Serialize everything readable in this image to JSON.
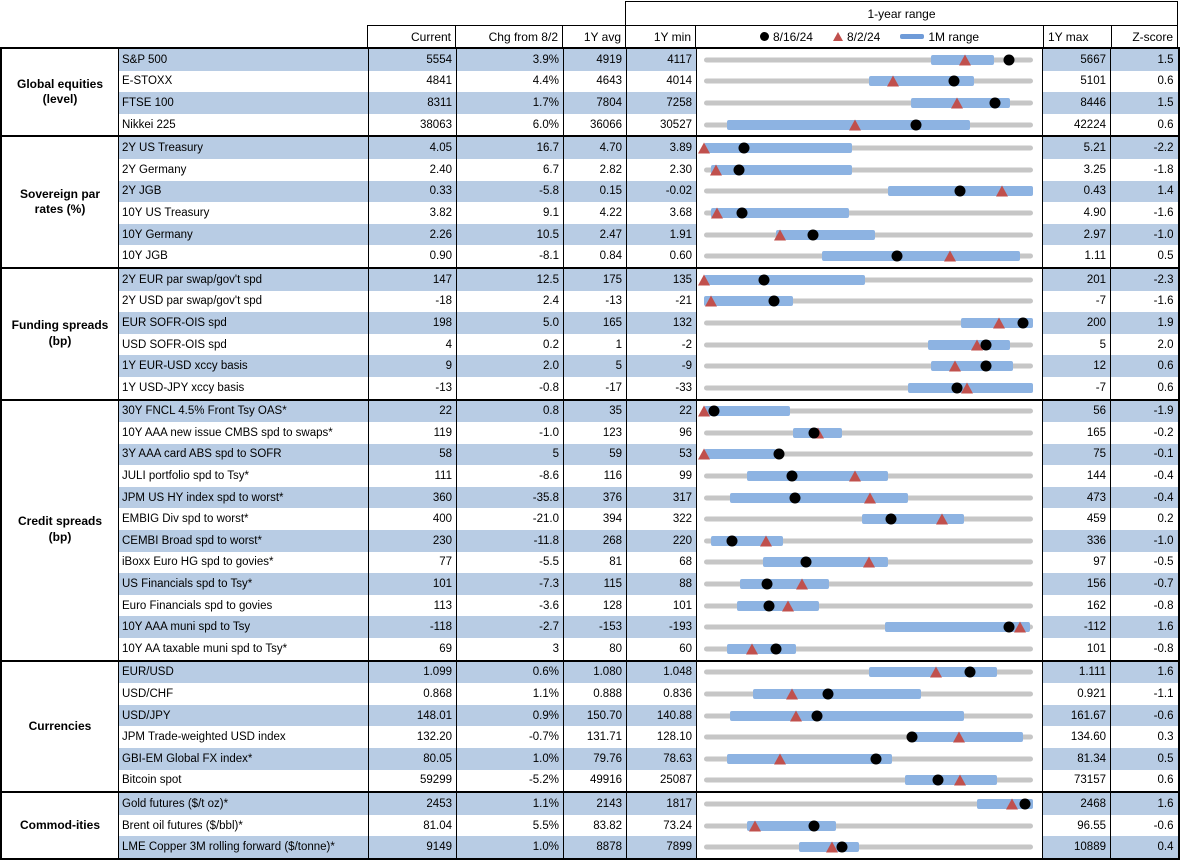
{
  "header": {
    "range_title": "1-year range",
    "col_current": "Current",
    "col_chg": "Chg from 8/2",
    "col_avg": "1Y avg",
    "col_min": "1Y min",
    "col_max": "1Y max",
    "col_z": "Z-score"
  },
  "legend": {
    "dot_label": "8/16/24",
    "tri_label": "8/2/24",
    "bar_label": "1M range"
  },
  "colors": {
    "band_blue": "#b8cce4",
    "range_bar_blue": "#8db3e2",
    "track_gray": "#c6c6c6",
    "marker_red": "#c0504d",
    "marker_black": "#000000",
    "border_black": "#000000"
  },
  "chart_data": {
    "type": "table",
    "title": "1-year range",
    "columns": [
      "Current",
      "Chg from 8/2",
      "1Y avg",
      "1Y min",
      "1-year range",
      "1Y max",
      "Z-score"
    ],
    "marker_legend": [
      "8/16/24 (black dot)",
      "8/2/24 (red triangle)",
      "1M range (blue bar)"
    ],
    "sections": [
      {
        "label": "Global equities\n(level)",
        "rows": [
          {
            "name": "S&P 500",
            "current": "5554",
            "chg": "3.9%",
            "avg": "4919",
            "min": "4117",
            "max": "5667",
            "z": "1.5",
            "bar": [
              0.69,
              0.88
            ],
            "dot": 0.927,
            "tri": 0.793
          },
          {
            "name": "E-STOXX",
            "current": "4841",
            "chg": "4.4%",
            "avg": "4643",
            "min": "4014",
            "max": "5101",
            "z": "0.6",
            "bar": [
              0.5,
              0.82
            ],
            "dot": 0.761,
            "tri": 0.573
          },
          {
            "name": "FTSE 100",
            "current": "8311",
            "chg": "1.7%",
            "avg": "7804",
            "min": "7258",
            "max": "8446",
            "z": "1.5",
            "bar": [
              0.63,
              0.93
            ],
            "dot": 0.886,
            "tri": 0.769
          },
          {
            "name": "Nikkei 225",
            "current": "38063",
            "chg": "6.0%",
            "avg": "36066",
            "min": "30527",
            "max": "42224",
            "z": "0.6",
            "bar": [
              0.07,
              0.81
            ],
            "dot": 0.644,
            "tri": 0.46
          }
        ]
      },
      {
        "label": "Sovereign par\nrates (%)",
        "rows": [
          {
            "name": "2Y US Treasury",
            "current": "4.05",
            "chg": "16.7",
            "avg": "4.70",
            "min": "3.89",
            "max": "5.21",
            "z": "-2.2",
            "bar": [
              0.0,
              0.45
            ],
            "dot": 0.121,
            "tri": 0.0
          },
          {
            "name": "2Y Germany",
            "current": "2.40",
            "chg": "6.7",
            "avg": "2.82",
            "min": "2.30",
            "max": "3.25",
            "z": "-1.8",
            "bar": [
              0.02,
              0.45
            ],
            "dot": 0.105,
            "tri": 0.035
          },
          {
            "name": "2Y JGB",
            "current": "0.33",
            "chg": "-5.8",
            "avg": "0.15",
            "min": "-0.02",
            "max": "0.43",
            "z": "1.4",
            "bar": [
              0.56,
              1.0
            ],
            "dot": 0.778,
            "tri": 0.907
          },
          {
            "name": "10Y US Treasury",
            "current": "3.82",
            "chg": "9.1",
            "avg": "4.22",
            "min": "3.68",
            "max": "4.90",
            "z": "-1.6",
            "bar": [
              0.02,
              0.44
            ],
            "dot": 0.115,
            "tri": 0.04
          },
          {
            "name": "10Y Germany",
            "current": "2.26",
            "chg": "10.5",
            "avg": "2.47",
            "min": "1.91",
            "max": "2.97",
            "z": "-1.0",
            "bar": [
              0.22,
              0.52
            ],
            "dot": 0.33,
            "tri": 0.231
          },
          {
            "name": "10Y JGB",
            "current": "0.90",
            "chg": "-8.1",
            "avg": "0.84",
            "min": "0.60",
            "max": "1.11",
            "z": "0.5",
            "bar": [
              0.36,
              0.96
            ],
            "dot": 0.588,
            "tri": 0.747
          }
        ]
      },
      {
        "label": "Funding spreads\n(bp)",
        "rows": [
          {
            "name": "2Y EUR par swap/gov't spd",
            "current": "147",
            "chg": "12.5",
            "avg": "175",
            "min": "135",
            "max": "201",
            "z": "-2.3",
            "bar": [
              0.0,
              0.49
            ],
            "dot": 0.182,
            "tri": 0.0
          },
          {
            "name": "2Y USD par swap/gov't spd",
            "current": "-18",
            "chg": "2.4",
            "avg": "-13",
            "min": "-21",
            "max": "-7",
            "z": "-1.6",
            "bar": [
              0.0,
              0.27
            ],
            "dot": 0.214,
            "tri": 0.02
          },
          {
            "name": "EUR SOFR-OIS spd",
            "current": "198",
            "chg": "5.0",
            "avg": "165",
            "min": "132",
            "max": "200",
            "z": "1.9",
            "bar": [
              0.78,
              1.0
            ],
            "dot": 0.971,
            "tri": 0.897
          },
          {
            "name": "USD SOFR-OIS spd",
            "current": "4",
            "chg": "0.2",
            "avg": "1",
            "min": "-2",
            "max": "5",
            "z": "2.0",
            "bar": [
              0.68,
              0.93
            ],
            "dot": 0.857,
            "tri": 0.829
          },
          {
            "name": "1Y EUR-USD xccy basis",
            "current": "9",
            "chg": "2.0",
            "avg": "5",
            "min": "-9",
            "max": "12",
            "z": "0.6",
            "bar": [
              0.69,
              0.94
            ],
            "dot": 0.857,
            "tri": 0.762
          },
          {
            "name": "1Y USD-JPY xccy basis",
            "current": "-13",
            "chg": "-0.8",
            "avg": "-17",
            "min": "-33",
            "max": "-7",
            "z": "0.6",
            "bar": [
              0.62,
              1.0
            ],
            "dot": 0.769,
            "tri": 0.8
          }
        ]
      },
      {
        "label": "Credit spreads\n(bp)",
        "rows": [
          {
            "name": "30Y FNCL 4.5% Front Tsy OAS*",
            "current": "22",
            "chg": "0.8",
            "avg": "35",
            "min": "22",
            "max": "56",
            "z": "-1.9",
            "bar": [
              0.0,
              0.26
            ],
            "dot": 0.03,
            "tri": 0.0
          },
          {
            "name": "10Y AAA new issue CMBS spd to swaps*",
            "current": "119",
            "chg": "-1.0",
            "avg": "123",
            "min": "96",
            "max": "165",
            "z": "-0.2",
            "bar": [
              0.27,
              0.42
            ],
            "dot": 0.333,
            "tri": 0.348
          },
          {
            "name": "3Y AAA card ABS spd to SOFR",
            "current": "58",
            "chg": "5",
            "avg": "59",
            "min": "53",
            "max": "75",
            "z": "-0.1",
            "bar": [
              0.0,
              0.22
            ],
            "dot": 0.227,
            "tri": 0.0
          },
          {
            "name": "JULI portfolio spd to Tsy*",
            "current": "111",
            "chg": "-8.6",
            "avg": "116",
            "min": "99",
            "max": "144",
            "z": "-0.4",
            "bar": [
              0.13,
              0.56
            ],
            "dot": 0.267,
            "tri": 0.458
          },
          {
            "name": "JPM US HY index spd to worst*",
            "current": "360",
            "chg": "-35.8",
            "avg": "376",
            "min": "317",
            "max": "473",
            "z": "-0.4",
            "bar": [
              0.08,
              0.62
            ],
            "dot": 0.276,
            "tri": 0.505
          },
          {
            "name": "EMBIG Div spd to worst*",
            "current": "400",
            "chg": "-21.0",
            "avg": "394",
            "min": "322",
            "max": "459",
            "z": "0.2",
            "bar": [
              0.48,
              0.79
            ],
            "dot": 0.569,
            "tri": 0.723
          },
          {
            "name": "CEMBI Broad spd to worst*",
            "current": "230",
            "chg": "-11.8",
            "avg": "268",
            "min": "220",
            "max": "336",
            "z": "-1.0",
            "bar": [
              0.02,
              0.24
            ],
            "dot": 0.086,
            "tri": 0.188
          },
          {
            "name": "iBoxx Euro HG spd to govies*",
            "current": "77",
            "chg": "-5.5",
            "avg": "81",
            "min": "68",
            "max": "97",
            "z": "-0.5",
            "bar": [
              0.18,
              0.56
            ],
            "dot": 0.31,
            "tri": 0.5
          },
          {
            "name": "US Financials spd to Tsy*",
            "current": "101",
            "chg": "-7.3",
            "avg": "115",
            "min": "88",
            "max": "156",
            "z": "-0.7",
            "bar": [
              0.11,
              0.38
            ],
            "dot": 0.191,
            "tri": 0.299
          },
          {
            "name": "Euro Financials spd to govies",
            "current": "113",
            "chg": "-3.6",
            "avg": "128",
            "min": "101",
            "max": "162",
            "z": "-0.8",
            "bar": [
              0.1,
              0.35
            ],
            "dot": 0.197,
            "tri": 0.256
          },
          {
            "name": "10Y AAA muni spd to Tsy",
            "current": "-118",
            "chg": "-2.7",
            "avg": "-153",
            "min": "-193",
            "max": "-112",
            "z": "1.6",
            "bar": [
              0.55,
              0.99
            ],
            "dot": 0.926,
            "tri": 0.959
          },
          {
            "name": "10Y AA taxable muni spd to Tsy*",
            "current": "69",
            "chg": "3",
            "avg": "80",
            "min": "60",
            "max": "101",
            "z": "-0.8",
            "bar": [
              0.07,
              0.28
            ],
            "dot": 0.22,
            "tri": 0.146
          }
        ]
      },
      {
        "label": "Currencies",
        "rows": [
          {
            "name": "EUR/USD",
            "current": "1.099",
            "chg": "0.6%",
            "avg": "1.080",
            "min": "1.048",
            "max": "1.111",
            "z": "1.6",
            "bar": [
              0.5,
              0.89
            ],
            "dot": 0.81,
            "tri": 0.705
          },
          {
            "name": "USD/CHF",
            "current": "0.868",
            "chg": "1.1%",
            "avg": "0.888",
            "min": "0.836",
            "max": "0.921",
            "z": "-1.1",
            "bar": [
              0.15,
              0.66
            ],
            "dot": 0.376,
            "tri": 0.266
          },
          {
            "name": "USD/JPY",
            "current": "148.01",
            "chg": "0.9%",
            "avg": "150.70",
            "min": "140.88",
            "max": "161.67",
            "z": "-0.6",
            "bar": [
              0.08,
              0.79
            ],
            "dot": 0.343,
            "tri": 0.279
          },
          {
            "name": "JPM Trade-weighted USD index",
            "current": "132.20",
            "chg": "-0.7%",
            "avg": "131.71",
            "min": "128.10",
            "max": "134.60",
            "z": "0.3",
            "bar": [
              0.63,
              0.97
            ],
            "dot": 0.631,
            "tri": 0.774
          },
          {
            "name": "GBI-EM Global FX index*",
            "current": "80.05",
            "chg": "1.0%",
            "avg": "79.76",
            "min": "78.63",
            "max": "81.34",
            "z": "0.5",
            "bar": [
              0.07,
              0.57
            ],
            "dot": 0.524,
            "tri": 0.232
          },
          {
            "name": "Bitcoin spot",
            "current": "59299",
            "chg": "-5.2%",
            "avg": "49916",
            "min": "25087",
            "max": "73157",
            "z": "0.6",
            "bar": [
              0.61,
              0.89
            ],
            "dot": 0.712,
            "tri": 0.779
          }
        ]
      },
      {
        "label": "Commod-ities",
        "rows": [
          {
            "name": "Gold futures ($/t oz)*",
            "current": "2453",
            "chg": "1.1%",
            "avg": "2143",
            "min": "1817",
            "max": "2468",
            "z": "1.6",
            "bar": [
              0.83,
              1.0
            ],
            "dot": 0.977,
            "tri": 0.936
          },
          {
            "name": "Brent oil futures ($/bbl)*",
            "current": "81.04",
            "chg": "5.5%",
            "avg": "83.82",
            "min": "73.24",
            "max": "96.55",
            "z": "-0.6",
            "bar": [
              0.13,
              0.4
            ],
            "dot": 0.335,
            "tri": 0.154
          },
          {
            "name": "LME Copper 3M rolling forward ($/tonne)*",
            "current": "9149",
            "chg": "1.0%",
            "avg": "8878",
            "min": "7899",
            "max": "10889",
            "z": "0.4",
            "bar": [
              0.29,
              0.47
            ],
            "dot": 0.418,
            "tri": 0.388
          }
        ]
      }
    ]
  }
}
